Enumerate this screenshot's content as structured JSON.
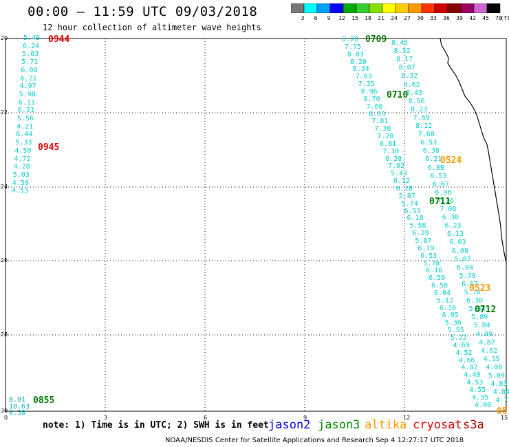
{
  "title": "00:00 – 11:59 UTC 09/03/2018",
  "subtitle": "12 hour collection of altimeter wave heights",
  "colorbar": {
    "labels": [
      "3",
      "6",
      "9",
      "12",
      "15",
      "18",
      "21",
      "24",
      "27",
      "30",
      "33",
      "36",
      "39",
      "42",
      "45",
      "70",
      "(ft)"
    ],
    "colors": [
      "#777777",
      "#00ffff",
      "#00a0ff",
      "#0000ff",
      "#00aa00",
      "#33cc33",
      "#88dd00",
      "#ffff00",
      "#ffcc00",
      "#ff9900",
      "#ff3300",
      "#cc0000",
      "#880000",
      "#990066",
      "#cc66cc",
      "#000000"
    ]
  },
  "axes": {
    "lat_labels": [
      "-20",
      "-22",
      "-24",
      "-26",
      "-28",
      "-30"
    ],
    "lon_labels": [
      "0",
      "3",
      "6",
      "9",
      "12",
      "15"
    ]
  },
  "passes": [
    {
      "label": "0944",
      "color": "#dd0000"
    },
    {
      "label": "0945",
      "color": "#dd0000"
    },
    {
      "label": "0855",
      "color": "#007700"
    },
    {
      "label": "0709",
      "color": "#007700"
    },
    {
      "label": "0710",
      "color": "#007700"
    },
    {
      "label": "0711",
      "color": "#007700"
    },
    {
      "label": "0712",
      "color": "#007700"
    },
    {
      "label": "0524",
      "color": "#ff9900"
    },
    {
      "label": "0523",
      "color": "#ff9900"
    },
    {
      "label": "05",
      "color": "#ff9900"
    }
  ],
  "tracks": {
    "west": [
      "5.49",
      "6.24",
      "5.83",
      "5.71",
      "6.08",
      "6.21",
      "4.97",
      "5.98",
      "6.11",
      "6.31",
      "5.56",
      "4.21",
      "6.44",
      "5.33",
      "4.50",
      "4.72",
      "4.28",
      "5.03",
      "4.59",
      "4.53"
    ],
    "bottom_left": [
      "8.91",
      "10.63",
      "0.38"
    ],
    "east_a": [
      "8.20",
      "7.75",
      "8.03",
      "8.20",
      "8.34",
      "7.63",
      "7.35",
      "8.96",
      "8.70",
      "7.60",
      "8.03",
      "7.81",
      "7.38",
      "7.28",
      "6.81",
      "7.38",
      "6.28",
      "7.02",
      "5.43",
      "6.12",
      "6.18",
      "5.87",
      "5.74",
      "6.53",
      "6.18",
      "5.58",
      "6.29",
      "5.87",
      "6.19",
      "6.53",
      "5.78",
      "6.16",
      "6.59",
      "6.58",
      "6.04",
      "5.12",
      "6.10",
      "6.05",
      "5.36",
      "5.55",
      "5.22",
      "4.69",
      "4.52",
      "4.66",
      "4.82",
      "4.40",
      "4.53",
      "4.55",
      "4.35",
      "4.00"
    ],
    "east_b": [
      "8.43",
      "8.32",
      "8.17",
      "8.07",
      "8.32",
      "8.62",
      "8.43",
      "8.56",
      "8.23",
      "7.69",
      "8.12",
      "7.60",
      "6.53",
      "6.38",
      "6.21",
      "6.89",
      "6.53",
      "6.67",
      "6.96",
      "7.26",
      "7.08",
      "6.30",
      "6.23",
      "6.13",
      "6.03",
      "6.08",
      "5.87",
      "6.04",
      "5.79",
      "6.67",
      "5.70",
      "6.30",
      "5.54",
      "5.89",
      "5.84",
      "4.89",
      "4.87",
      "4.62",
      "4.15",
      "4.08",
      "5.09",
      "4.83",
      "4.84",
      "4.71"
    ]
  },
  "note": "note: 1) Time is in UTC; 2) SWH is in feet",
  "satellites": [
    {
      "name": "jason2",
      "color": "#0000cc"
    },
    {
      "name": "jason3",
      "color": "#008800"
    },
    {
      "name": "altika",
      "color": "#ff9900"
    },
    {
      "name": "cryosat",
      "color": "#dd0000"
    },
    {
      "name": "s3a",
      "color": "#aa0000"
    }
  ],
  "footer": "NOAA/NESDIS Center for Satellite Applications and Research    Sep  4 12:27:17 UTC 2018"
}
